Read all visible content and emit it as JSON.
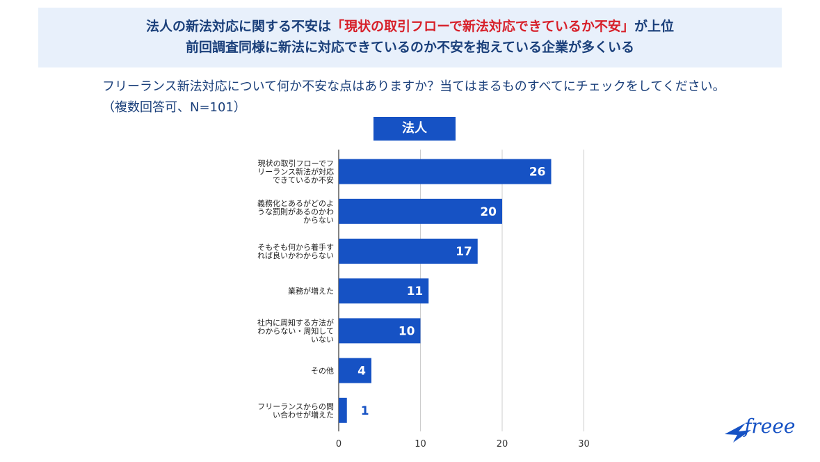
{
  "headline": {
    "line1_pre": "法人の新法対応に関する不安は",
    "line1_highlight": "「現状の取引フローで新法対応できているか不安」",
    "line1_post": "が上位",
    "line2": "前回調査同様に新法に対応できているのか不安を抱えている企業が多くいる"
  },
  "question": "フリーランス新法対応について何か不安な点はありますか？当てはまるものすべてにチェックをしてください。（複数回答可、N=101）",
  "badge": "法人",
  "logo": "freee",
  "colors": {
    "bar": "#1652c4",
    "headline_bg": "#e8f0fb",
    "highlight": "#d7202a",
    "text": "#1a3f7a"
  },
  "chart_data": {
    "type": "bar",
    "orientation": "horizontal",
    "title": "法人",
    "categories": [
      [
        "現状の取引フローでフ",
        "リーランス新法が対応",
        "できているか不安"
      ],
      [
        "義務化とあるがどのよ",
        "うな罰則があるのかわ",
        "からない"
      ],
      [
        "そもそも何から着手す",
        "れば良いかわからない"
      ],
      [
        "業務が増えた"
      ],
      [
        "社内に周知する方法が",
        "わからない・周知して",
        "いない"
      ],
      [
        "その他"
      ],
      [
        "フリーランスからの問",
        "い合わせが増えた"
      ]
    ],
    "values": [
      26,
      20,
      17,
      11,
      10,
      4,
      1
    ],
    "xlim": [
      0,
      30
    ],
    "xticks": [
      0,
      10,
      20,
      30
    ],
    "grid": true
  }
}
